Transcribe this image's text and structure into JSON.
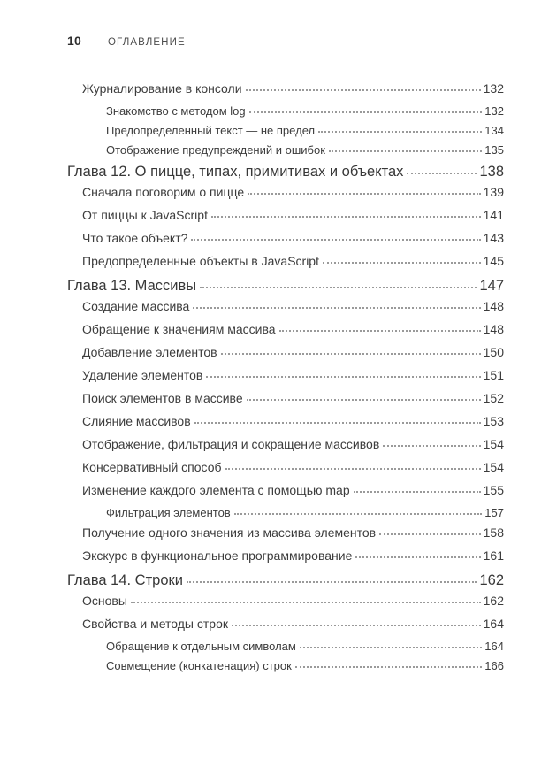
{
  "page": {
    "number": "10",
    "running_header": "ОГЛАВЛЕНИЕ"
  },
  "colors": {
    "text": "#3c3c3c",
    "chapter_text": "#383838",
    "header_text": "#4c4c4c",
    "pagenum_text": "#2e2e2e",
    "leader_dots": "#9a9a9a",
    "background": "#ffffff"
  },
  "toc": {
    "entries": [
      {
        "level": "section",
        "title": "Журналирование в консоли",
        "page": "132"
      },
      {
        "level": "subsection",
        "title": "Знакомство с методом log",
        "page": "132"
      },
      {
        "level": "subsection",
        "title": "Предопределенный текст — не предел",
        "page": "134"
      },
      {
        "level": "subsection",
        "title": "Отображение предупреждений и ошибок",
        "page": "135"
      },
      {
        "level": "chapter",
        "title": "Глава 12. О пицце, типах, примитивах и объектах",
        "page": "138"
      },
      {
        "level": "section",
        "title": "Сначала поговорим о пицце",
        "page": "139"
      },
      {
        "level": "section",
        "title": "От пиццы к JavaScript",
        "page": "141"
      },
      {
        "level": "section",
        "title": "Что такое объект?",
        "page": "143"
      },
      {
        "level": "section",
        "title": "Предопределенные объекты в JavaScript",
        "page": "145"
      },
      {
        "level": "chapter",
        "title": "Глава 13. Массивы",
        "page": "147"
      },
      {
        "level": "section",
        "title": "Создание массива",
        "page": "148"
      },
      {
        "level": "section",
        "title": "Обращение к значениям массива",
        "page": "148"
      },
      {
        "level": "section",
        "title": "Добавление элементов",
        "page": "150"
      },
      {
        "level": "section",
        "title": "Удаление элементов",
        "page": "151"
      },
      {
        "level": "section",
        "title": "Поиск элементов в массиве",
        "page": "152"
      },
      {
        "level": "section",
        "title": "Слияние массивов",
        "page": "153"
      },
      {
        "level": "section",
        "title": "Отображение, фильтрация и сокращение массивов",
        "page": "154"
      },
      {
        "level": "section",
        "title": "Консервативный способ",
        "page": "154"
      },
      {
        "level": "section",
        "title": "Изменение каждого элемента с помощью map",
        "page": "155"
      },
      {
        "level": "subsection",
        "title": "Фильтрация элементов",
        "page": "157"
      },
      {
        "level": "section",
        "title": "Получение одного значения из массива элементов",
        "page": "158"
      },
      {
        "level": "section",
        "title": "Экскурс в функциональное программирование",
        "page": "161"
      },
      {
        "level": "chapter",
        "title": "Глава 14. Строки",
        "page": "162"
      },
      {
        "level": "section",
        "title": "Основы",
        "page": "162"
      },
      {
        "level": "section",
        "title": "Свойства и методы строк",
        "page": "164"
      },
      {
        "level": "subsection",
        "title": "Обращение к отдельным символам",
        "page": "164"
      },
      {
        "level": "subsection",
        "title": "Совмещение (конкатенация) строк",
        "page": "166"
      }
    ]
  }
}
